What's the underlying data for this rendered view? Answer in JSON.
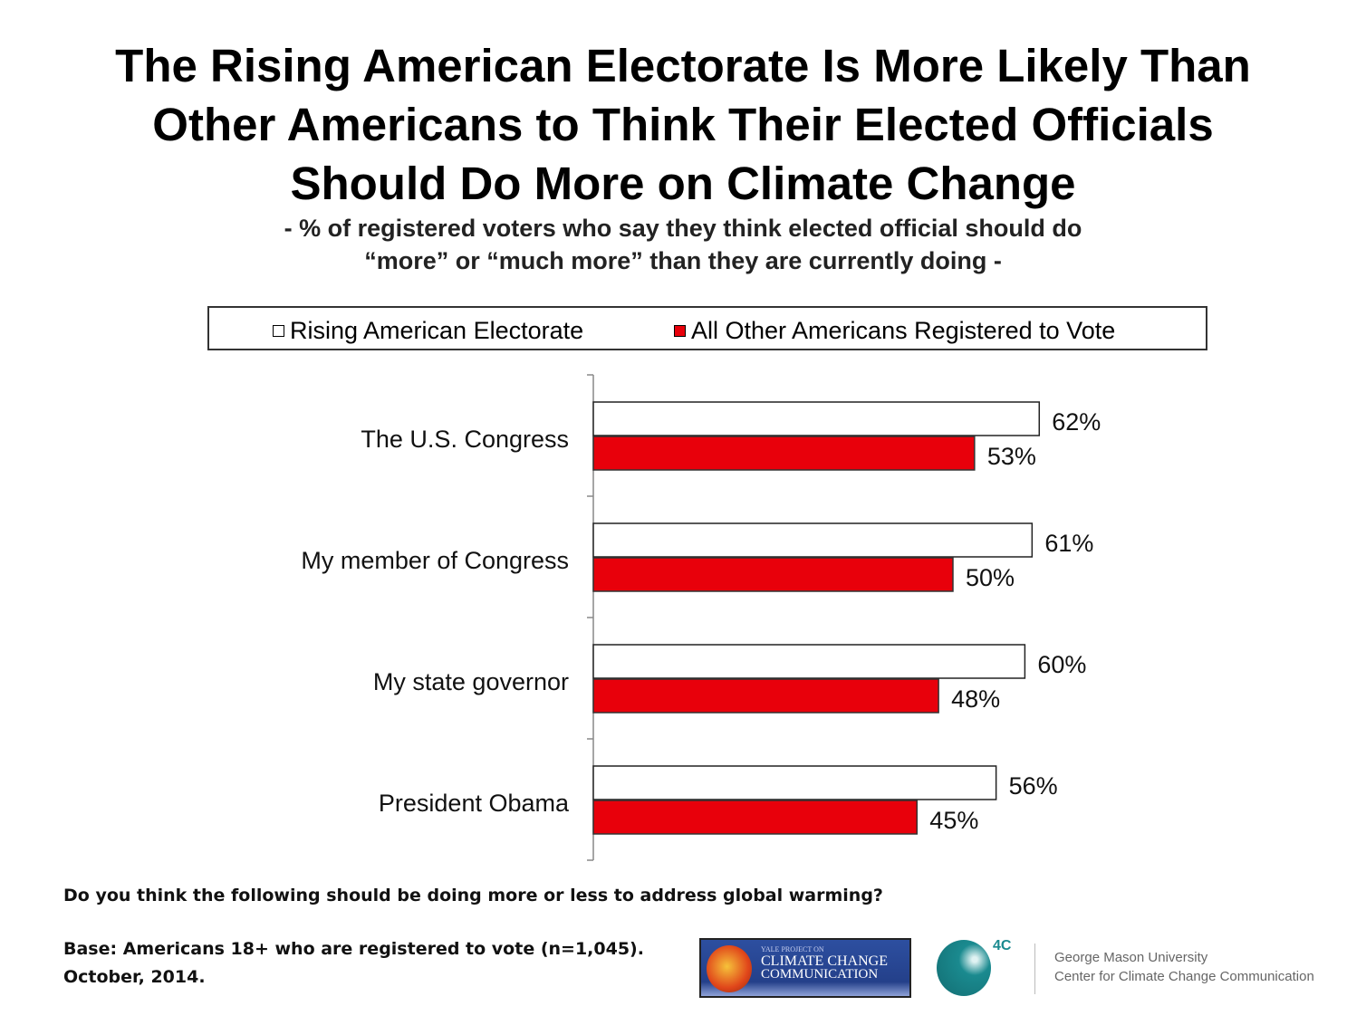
{
  "title": [
    "The Rising American Electorate Is More Likely Than",
    "Other Americans to Think Their Elected Officials",
    "Should Do More on Climate Change"
  ],
  "subtitle": [
    "- % of registered voters who say they think elected official should do",
    "“more” or “much more” than they are currently doing -"
  ],
  "chart_data": {
    "type": "bar",
    "orientation": "horizontal",
    "categories": [
      "The U.S. Congress",
      "My member of Congress",
      "My state governor",
      "President Obama"
    ],
    "series": [
      {
        "name": "Rising American Electorate",
        "values": [
          62,
          61,
          60,
          56
        ],
        "color": "#ffffff"
      },
      {
        "name": "All Other Americans Registered to Vote",
        "values": [
          53,
          50,
          48,
          45
        ],
        "color": "#e8000b"
      }
    ],
    "data_labels": [
      [
        "62%",
        "61%",
        "60%",
        "56%"
      ],
      [
        "53%",
        "50%",
        "48%",
        "45%"
      ]
    ],
    "xlim": [
      0,
      100
    ],
    "legend": "top",
    "grid": false
  },
  "footer": {
    "question": "Do you think the following should be doing more or less to address global warming?",
    "base": "Base: Americans 18+ who are registered to vote (n=1,045).",
    "date": "October, 2014."
  },
  "logos": {
    "yale": {
      "line1": "YALE PROJECT ON",
      "line2": "CLIMATE CHANGE",
      "line3": "COMMUNICATION"
    },
    "gmu": {
      "mark": "4C",
      "line1": "George Mason University",
      "line2": "Center for Climate Change Communication",
      "accent": "#1a8a8f"
    }
  }
}
